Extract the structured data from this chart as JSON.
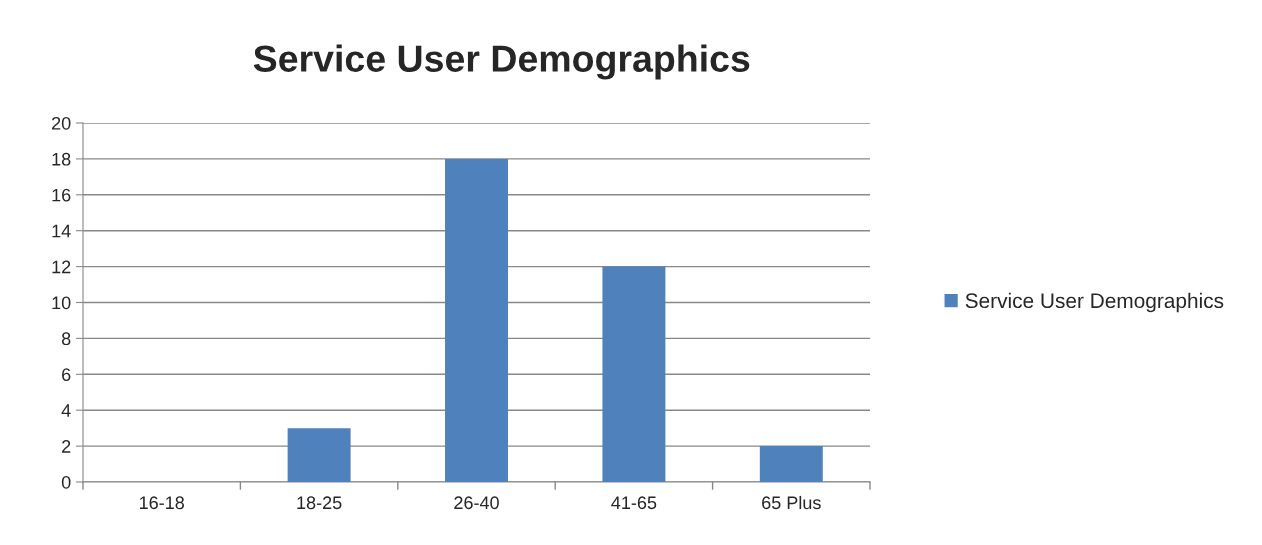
{
  "chart_data": {
    "type": "bar",
    "title": "Service User Demographics",
    "categories": [
      "16-18",
      "18-25",
      "26-40",
      "41-65",
      "65 Plus"
    ],
    "series": [
      {
        "name": "Service User Demographics",
        "color": "#4f81bd",
        "values": [
          0,
          3,
          18,
          12,
          2
        ]
      }
    ],
    "ylim": [
      0,
      20
    ],
    "yticks": [
      0,
      2,
      4,
      6,
      8,
      10,
      12,
      14,
      16,
      18,
      20
    ],
    "grid": "y",
    "legend": "right"
  }
}
